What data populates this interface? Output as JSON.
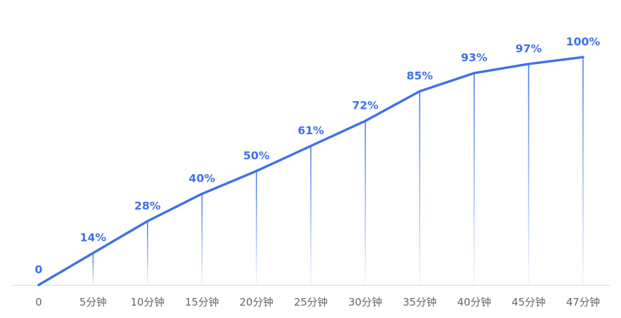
{
  "chart_data": {
    "type": "line",
    "categories": [
      "0",
      "5分钟",
      "10分钟",
      "15分钟",
      "20分钟",
      "25分钟",
      "30分钟",
      "35分钟",
      "40分钟",
      "45分钟",
      "47分钟"
    ],
    "series": [
      {
        "values": [
          0,
          14,
          28,
          40,
          50,
          61,
          72,
          85,
          93,
          97,
          100
        ],
        "data_labels": [
          "0",
          "14%",
          "28%",
          "40%",
          "50%",
          "61%",
          "72%",
          "85%",
          "93%",
          "97%",
          "100%"
        ]
      }
    ],
    "ylim": [
      0,
      100
    ],
    "grid": false,
    "legend": "none",
    "colors": {
      "line": "#3d72e8",
      "label": "#3d72e8",
      "drop_line": "#3d72e8",
      "axis": "#d9d9d9",
      "tick_text": "#666666"
    }
  }
}
